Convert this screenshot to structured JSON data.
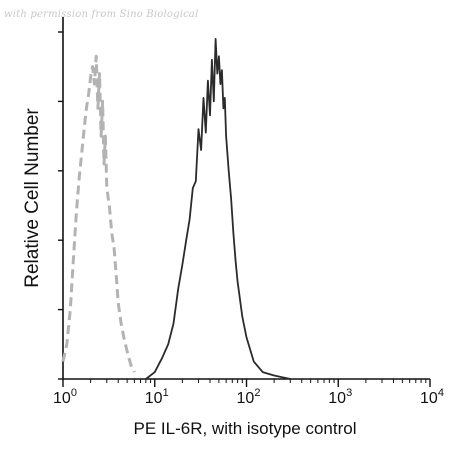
{
  "watermark": "with permission from Sino Biological",
  "chart_data": {
    "type": "line",
    "xlabel": "PE IL-6R, with isotype control",
    "ylabel": "Relative Cell Number",
    "xscale": "log",
    "xlim": [
      1,
      10000
    ],
    "ylim": [
      0,
      1
    ],
    "grid": false,
    "x_tick_labels": [
      {
        "value": 1,
        "base": "10",
        "exp": "0"
      },
      {
        "value": 10,
        "base": "10",
        "exp": "1"
      },
      {
        "value": 100,
        "base": "10",
        "exp": "2"
      },
      {
        "value": 1000,
        "base": "10",
        "exp": "3"
      },
      {
        "value": 10000,
        "base": "10",
        "exp": "4"
      }
    ],
    "y_ticks": [
      0,
      0.2,
      0.4,
      0.6,
      0.8,
      1.0
    ],
    "series": [
      {
        "name": "",
        "role": "isotype control",
        "style": "dashed",
        "color": "#b3b3b3",
        "x": [
          1.0,
          1.1,
          1.2,
          1.3,
          1.4,
          1.5,
          1.6,
          1.7,
          1.8,
          1.9,
          2.0,
          2.1,
          2.2,
          2.3,
          2.4,
          2.5,
          2.6,
          2.7,
          2.8,
          2.9,
          3.0,
          3.2,
          3.4,
          3.6,
          3.8,
          4.0,
          4.3,
          4.6,
          5.0,
          5.5,
          6.0
        ],
        "y": [
          0.05,
          0.1,
          0.2,
          0.35,
          0.48,
          0.58,
          0.65,
          0.72,
          0.78,
          0.82,
          0.87,
          0.9,
          0.85,
          0.93,
          0.78,
          0.88,
          0.7,
          0.8,
          0.62,
          0.7,
          0.55,
          0.5,
          0.42,
          0.38,
          0.3,
          0.22,
          0.16,
          0.12,
          0.08,
          0.04,
          0.02
        ]
      },
      {
        "name": "",
        "role": "PE IL-6R",
        "style": "solid",
        "color": "#2b2b2b",
        "x": [
          8,
          10,
          12,
          14,
          16,
          18,
          20,
          22,
          24,
          26,
          28,
          30,
          32,
          34,
          36,
          38,
          40,
          42,
          44,
          46,
          48,
          50,
          52,
          54,
          56,
          58,
          60,
          64,
          68,
          72,
          76,
          80,
          90,
          100,
          120,
          150,
          200,
          300
        ],
        "y": [
          0.0,
          0.02,
          0.06,
          0.1,
          0.16,
          0.26,
          0.33,
          0.4,
          0.46,
          0.55,
          0.57,
          0.72,
          0.66,
          0.81,
          0.71,
          0.86,
          0.76,
          0.92,
          0.8,
          0.98,
          0.88,
          0.93,
          0.85,
          0.89,
          0.78,
          0.81,
          0.7,
          0.6,
          0.52,
          0.42,
          0.34,
          0.28,
          0.18,
          0.12,
          0.05,
          0.02,
          0.01,
          0.0
        ]
      }
    ]
  }
}
